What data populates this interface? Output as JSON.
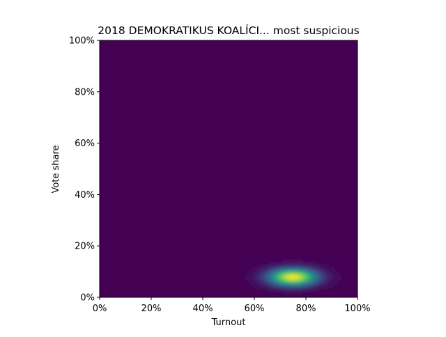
{
  "chart_data": {
    "type": "heatmap",
    "title": "2018 DEMOKRATIKUS KOALÍCI... most suspicious",
    "xlabel": "Turnout",
    "ylabel": "Vote share",
    "xlim": [
      0,
      100
    ],
    "ylim": [
      0,
      100
    ],
    "xticks": [
      "0%",
      "20%",
      "40%",
      "60%",
      "80%",
      "100%"
    ],
    "yticks": [
      "0%",
      "20%",
      "40%",
      "60%",
      "80%",
      "100%"
    ],
    "colormap": "viridis",
    "background_color": "#440154",
    "density": {
      "center_turnout": 75,
      "center_vote_share": 8,
      "spread_turnout": 7,
      "spread_vote_share": 2.5
    }
  }
}
